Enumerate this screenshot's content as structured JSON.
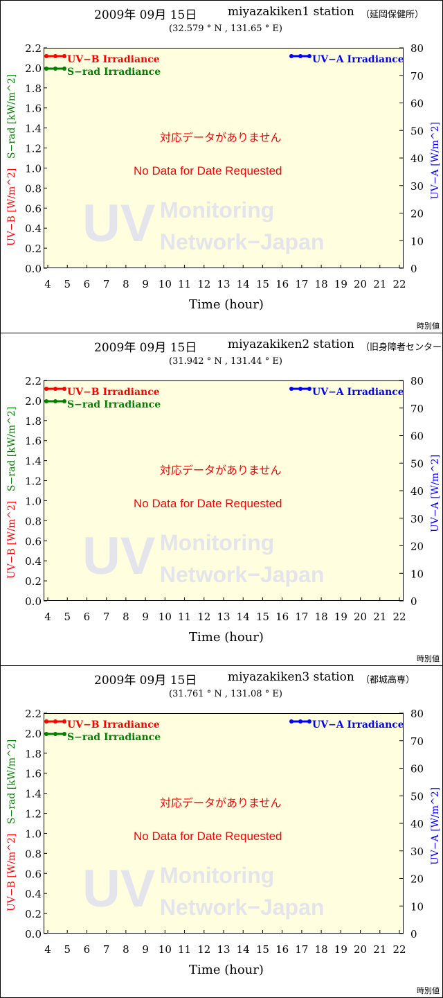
{
  "chart_data": [
    {
      "type": "line",
      "date": "2009年 09月 15日",
      "station": "miyazakiken1 station",
      "station_jp": "（延岡保健所）",
      "coords": "(32.579 ° N , 131.65 ° E)"
    },
    {
      "type": "line",
      "date": "2009年 09月 15日",
      "station": "miyazakiken2 station",
      "station_jp": "（旧身障者センター）",
      "coords": "(31.942 ° N , 131.44 ° E)"
    },
    {
      "type": "line",
      "date": "2009年 09月 15日",
      "station": "miyazakiken3 station",
      "station_jp": "（都城高専）",
      "coords": "(31.761 ° N , 131.08 ° E)"
    }
  ],
  "common": {
    "xlabel": "Time (hour)",
    "xlim": [
      4,
      22
    ],
    "xticks": [
      4,
      5,
      6,
      7,
      8,
      9,
      10,
      11,
      12,
      13,
      14,
      15,
      16,
      17,
      18,
      19,
      20,
      21,
      22
    ],
    "ylim_left": [
      0,
      2.2
    ],
    "yticks_left": [
      "0.0",
      "0.2",
      "0.4",
      "0.6",
      "0.8",
      "1.0",
      "1.2",
      "1.4",
      "1.6",
      "1.8",
      "2.0",
      "2.2"
    ],
    "ylim_right": [
      0,
      80
    ],
    "yticks_right": [
      "0",
      "10",
      "20",
      "30",
      "40",
      "50",
      "60",
      "70",
      "80"
    ],
    "ylabel_uvb": "UV−B [W/m^2]",
    "ylabel_srad": "S−rad [kW/m^2]",
    "ylabel_uva": "UV−A [W/m^2]",
    "legend": [
      {
        "name": "UV−B Irradiance",
        "color": "#ff0000"
      },
      {
        "name": "S−rad Irradiance",
        "color": "#008000"
      },
      {
        "name": "UV−A Irradiance",
        "color": "#0000ff"
      }
    ],
    "nodata_jp": "対応データがありません",
    "nodata_en": "No Data for Date Requested",
    "watermark": [
      "UV",
      "Monitoring",
      "Network−Japan"
    ],
    "footer": "時別値",
    "plot_bg": "#ffffe0",
    "grid": false
  }
}
